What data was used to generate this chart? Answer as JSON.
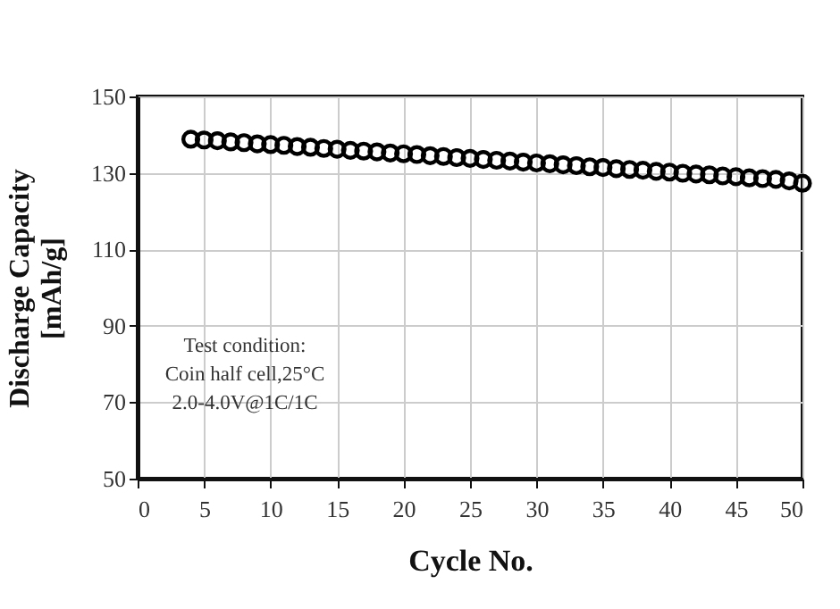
{
  "chart_data": {
    "type": "scatter",
    "xlabel": "Cycle No.",
    "ylabel": "Discharge Capacity\n[mAh/g]",
    "annotations": [
      "Test condition:\nCoin half cell,25°C\n2.0-4.0V@1C/1C"
    ],
    "x": [
      4,
      5,
      6,
      7,
      8,
      9,
      10,
      11,
      12,
      13,
      14,
      15,
      16,
      17,
      18,
      19,
      20,
      21,
      22,
      23,
      24,
      25,
      26,
      27,
      28,
      29,
      30,
      31,
      32,
      33,
      34,
      35,
      36,
      37,
      38,
      39,
      40,
      41,
      42,
      43,
      44,
      45,
      46,
      47,
      48,
      49,
      50
    ],
    "series": [
      {
        "color": "#000000",
        "values": [
          138.8,
          138.6,
          138.4,
          138.1,
          137.9,
          137.6,
          137.4,
          137.2,
          136.9,
          136.7,
          136.4,
          136.2,
          135.9,
          135.7,
          135.5,
          135.2,
          135.0,
          134.8,
          134.5,
          134.3,
          134.0,
          133.8,
          133.5,
          133.3,
          133.1,
          132.8,
          132.6,
          132.4,
          132.1,
          131.9,
          131.6,
          131.4,
          131.1,
          130.9,
          130.7,
          130.4,
          130.2,
          129.9,
          129.7,
          129.5,
          129.2,
          129.0,
          128.7,
          128.5,
          128.3,
          127.9,
          127.3
        ]
      }
    ],
    "xlim": [
      0,
      50
    ],
    "xticks": [
      0,
      5,
      10,
      15,
      20,
      25,
      30,
      35,
      40,
      45,
      50
    ],
    "ylim": [
      50,
      150
    ],
    "yticks": [
      50,
      70,
      90,
      110,
      130,
      150
    ],
    "grid": true,
    "marker": "circle"
  }
}
